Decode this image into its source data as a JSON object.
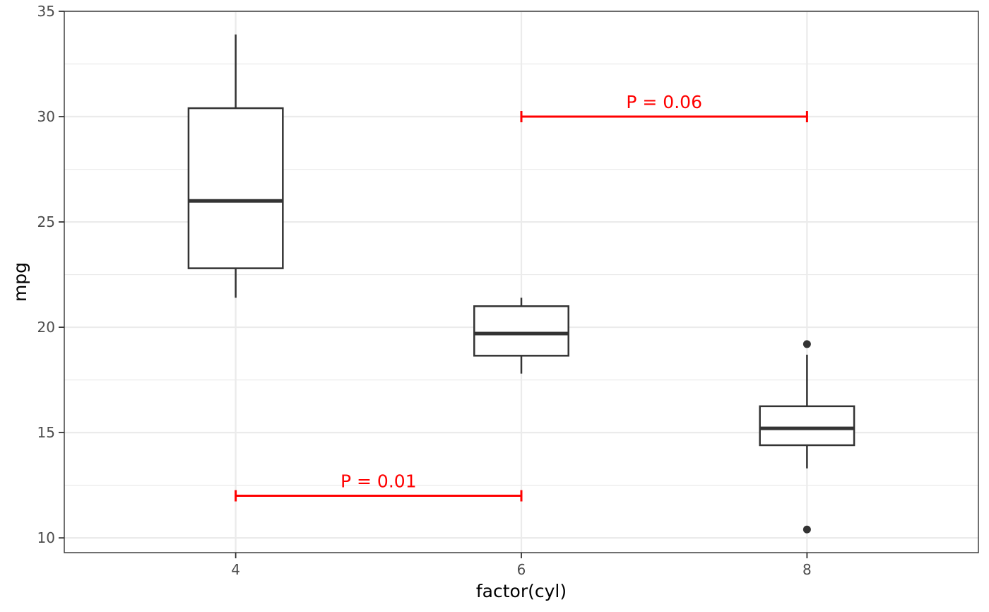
{
  "chart_data": {
    "type": "boxplot",
    "xlabel": "factor(cyl)",
    "ylabel": "mpg",
    "categories": [
      "4",
      "6",
      "8"
    ],
    "x_ticks": [
      4,
      6,
      8
    ],
    "xlim": [
      2.8,
      9.2
    ],
    "y_ticks": [
      10,
      15,
      20,
      25,
      30,
      35
    ],
    "ylim": [
      9.3,
      35
    ],
    "grid": true,
    "boxes": [
      {
        "category": "4",
        "x": 4,
        "whisker_low": 21.4,
        "q1": 22.8,
        "median": 26.0,
        "q3": 30.4,
        "whisker_high": 33.9,
        "outliers": []
      },
      {
        "category": "6",
        "x": 6,
        "whisker_low": 17.8,
        "q1": 18.65,
        "median": 19.7,
        "q3": 21.0,
        "whisker_high": 21.4,
        "outliers": []
      },
      {
        "category": "8",
        "x": 8,
        "whisker_low": 13.3,
        "q1": 14.4,
        "median": 15.2,
        "q3": 16.25,
        "whisker_high": 18.7,
        "outliers": [
          10.4,
          19.2
        ]
      }
    ],
    "annotations": [
      {
        "label": "P = 0.01",
        "x_start": 4,
        "x_end": 6,
        "y": 12,
        "color": "#ff0000"
      },
      {
        "label": "P = 0.06",
        "x_start": 6,
        "x_end": 8,
        "y": 30,
        "color": "#ff0000"
      }
    ],
    "colors": {
      "box_line": "#333333",
      "grid": "#ebebeb",
      "panel_border": "#333333",
      "annotation": "#ff0000"
    }
  }
}
